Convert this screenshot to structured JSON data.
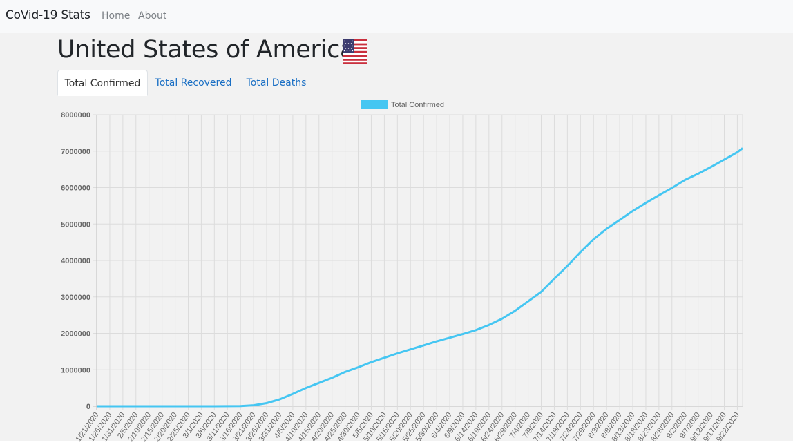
{
  "navbar": {
    "brand": "CoVid-19 Stats",
    "links": [
      "Home",
      "About"
    ]
  },
  "country": {
    "name": "United States of America",
    "flag_icon": "us-flag-icon"
  },
  "tabs": [
    {
      "label": "Total Confirmed",
      "active": true
    },
    {
      "label": "Total Recovered",
      "active": false
    },
    {
      "label": "Total Deaths",
      "active": false
    }
  ],
  "colors": {
    "series": "#45c6f2",
    "link": "#1a6fc4"
  },
  "chart_data": {
    "type": "line",
    "title": "",
    "legend": [
      "Total Confirmed"
    ],
    "legend_position": "top",
    "grid": true,
    "ylim": [
      0,
      8000000
    ],
    "y_ticks": [
      "0",
      "1000000",
      "2000000",
      "3000000",
      "4000000",
      "5000000",
      "6000000",
      "7000000",
      "8000000"
    ],
    "x_tick_labels": [
      "1/21/2020",
      "1/26/2020",
      "1/31/2020",
      "2/5/2020",
      "2/10/2020",
      "2/15/2020",
      "2/20/2020",
      "2/25/2020",
      "3/1/2020",
      "3/6/2020",
      "3/11/2020",
      "3/16/2020",
      "3/21/2020",
      "3/26/2020",
      "3/31/2020",
      "4/5/2020",
      "4/10/2020",
      "4/15/2020",
      "4/20/2020",
      "4/25/2020",
      "4/30/2020",
      "5/5/2020",
      "5/10/2020",
      "5/15/2020",
      "5/20/2020",
      "5/25/2020",
      "5/30/2020",
      "6/4/2020",
      "6/9/2020",
      "6/14/2020",
      "6/19/2020",
      "6/24/2020",
      "6/29/2020",
      "7/4/2020",
      "7/9/2020",
      "7/14/2020",
      "7/19/2020",
      "7/24/2020",
      "7/29/2020",
      "8/3/2020",
      "8/8/2020",
      "8/13/2020",
      "8/18/2020",
      "8/23/2020",
      "8/28/2020",
      "9/2/2020",
      "9/7/2020",
      "9/12/2020",
      "9/17/2020",
      "9/22/2020"
    ],
    "series": [
      {
        "name": "Total Confirmed",
        "x": [
          "1/21/2020",
          "1/26/2020",
          "1/31/2020",
          "2/5/2020",
          "2/10/2020",
          "2/15/2020",
          "2/20/2020",
          "2/25/2020",
          "3/1/2020",
          "3/6/2020",
          "3/11/2020",
          "3/16/2020",
          "3/21/2020",
          "3/26/2020",
          "3/31/2020",
          "4/5/2020",
          "4/10/2020",
          "4/15/2020",
          "4/20/2020",
          "4/25/2020",
          "4/30/2020",
          "5/5/2020",
          "5/10/2020",
          "5/15/2020",
          "5/20/2020",
          "5/25/2020",
          "5/30/2020",
          "6/4/2020",
          "6/9/2020",
          "6/14/2020",
          "6/19/2020",
          "6/24/2020",
          "6/29/2020",
          "7/4/2020",
          "7/9/2020",
          "7/14/2020",
          "7/19/2020",
          "7/24/2020",
          "7/29/2020",
          "8/3/2020",
          "8/8/2020",
          "8/13/2020",
          "8/18/2020",
          "8/23/2020",
          "8/28/2020",
          "9/2/2020",
          "9/7/2020",
          "9/12/2020",
          "9/17/2020",
          "9/22/2020",
          "9/24/2020"
        ],
        "values": [
          1,
          5,
          7,
          12,
          12,
          15,
          15,
          57,
          75,
          290,
          1300,
          4600,
          26000,
          85000,
          190000,
          340000,
          500000,
          640000,
          780000,
          940000,
          1070000,
          1210000,
          1330000,
          1450000,
          1560000,
          1670000,
          1780000,
          1880000,
          1980000,
          2090000,
          2230000,
          2400000,
          2620000,
          2880000,
          3140000,
          3500000,
          3850000,
          4230000,
          4580000,
          4870000,
          5110000,
          5360000,
          5580000,
          5790000,
          5990000,
          6210000,
          6380000,
          6570000,
          6770000,
          6970000,
          7080000
        ]
      }
    ]
  }
}
